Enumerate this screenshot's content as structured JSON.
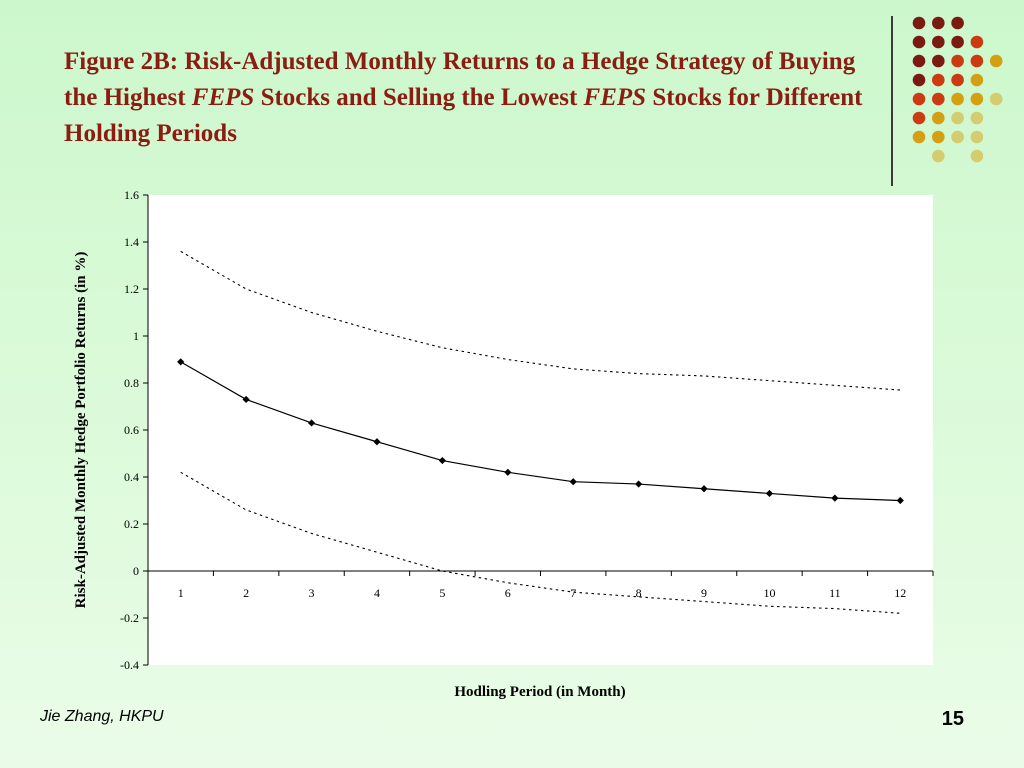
{
  "slide": {
    "title_part1": "Figure 2B: Risk-Adjusted Monthly Returns to a Hedge Strategy of Buying the Highest ",
    "title_em1": "FEPS",
    "title_part2": " Stocks and Selling the Lowest ",
    "title_em2": "FEPS",
    "title_part3": " Stocks for Different Holding Periods",
    "author": "Jie Zhang, HKPU",
    "page_number": "15",
    "title_color": "#8a1c12"
  },
  "decoration": {
    "dot_colors": [
      "#7a1a10",
      "#cc3a12",
      "#d4a012",
      "#d4cc6e"
    ]
  },
  "chart_data": {
    "type": "line",
    "title": "",
    "xlabel": "Hodling Period (in Month)",
    "ylabel": "Risk-Adjusted Monthly Hedge Portfolio Returns (in %)",
    "categories": [
      "1",
      "2",
      "3",
      "4",
      "5",
      "6",
      "7",
      "8",
      "9",
      "10",
      "11",
      "12"
    ],
    "yticks": [
      "-0.4",
      "-0.2",
      "0",
      "0.2",
      "0.4",
      "0.6",
      "0.8",
      "1",
      "1.2",
      "1.4",
      "1.6"
    ],
    "ylim": [
      -0.4,
      1.6
    ],
    "grid": false,
    "legend": "none",
    "series": [
      {
        "style": "solid-markers",
        "values": [
          0.89,
          0.73,
          0.63,
          0.55,
          0.47,
          0.42,
          0.38,
          0.37,
          0.35,
          0.33,
          0.31,
          0.3
        ]
      },
      {
        "style": "dotted",
        "values": [
          1.36,
          1.2,
          1.1,
          1.02,
          0.95,
          0.9,
          0.86,
          0.84,
          0.83,
          0.81,
          0.79,
          0.77
        ]
      },
      {
        "style": "dotted",
        "values": [
          0.42,
          0.26,
          0.16,
          0.08,
          0.0,
          -0.05,
          -0.09,
          -0.11,
          -0.13,
          -0.15,
          -0.16,
          -0.18
        ]
      }
    ]
  }
}
